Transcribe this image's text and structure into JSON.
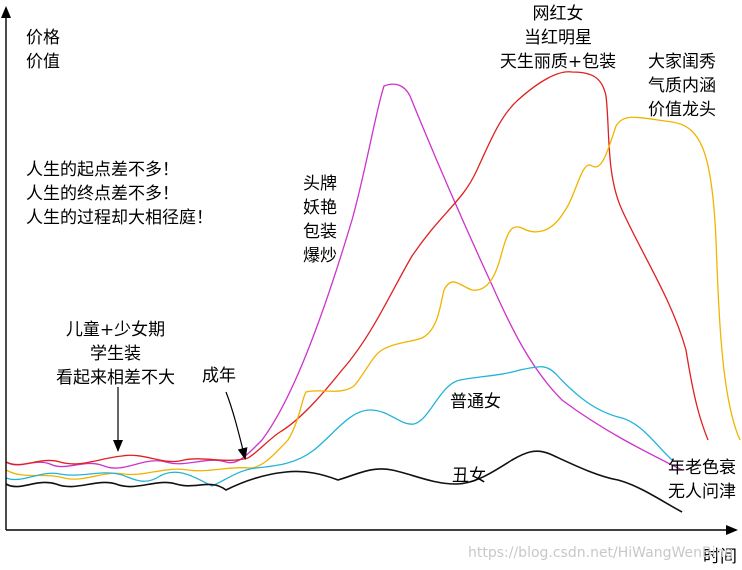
{
  "axes": {
    "y_label_lines": [
      "价格",
      "价值"
    ],
    "x_label": "时间"
  },
  "notes": {
    "intro_lines": [
      "人生的起点差不多！",
      "人生的终点差不多！",
      "人生的过程却大相径庭！"
    ],
    "childhood_lines": [
      "儿童+少女期",
      "学生装",
      "看起来相差不大"
    ],
    "adult": "成年",
    "hype_lines": [
      "头牌",
      "妖艳",
      "包装",
      "爆炒"
    ],
    "influencer_lines": [
      "网红女",
      "当红明星",
      "天生丽质+包装"
    ],
    "lady_lines": [
      "大家闺秀",
      "气质内涵",
      "价值龙头"
    ],
    "ordinary": "普通女",
    "plain": "丑女",
    "old_age_lines": [
      "年老色衰",
      "无人问津"
    ]
  },
  "curves": [
    {
      "id": "hype",
      "color": "#cc33cc"
    },
    {
      "id": "influencer",
      "color": "#e02020"
    },
    {
      "id": "lady",
      "color": "#f0b400"
    },
    {
      "id": "ordinary",
      "color": "#22b4d8"
    },
    {
      "id": "plain",
      "color": "#111111"
    }
  ],
  "watermark": "https://blog.csdn.net/HiWangWenBing"
}
